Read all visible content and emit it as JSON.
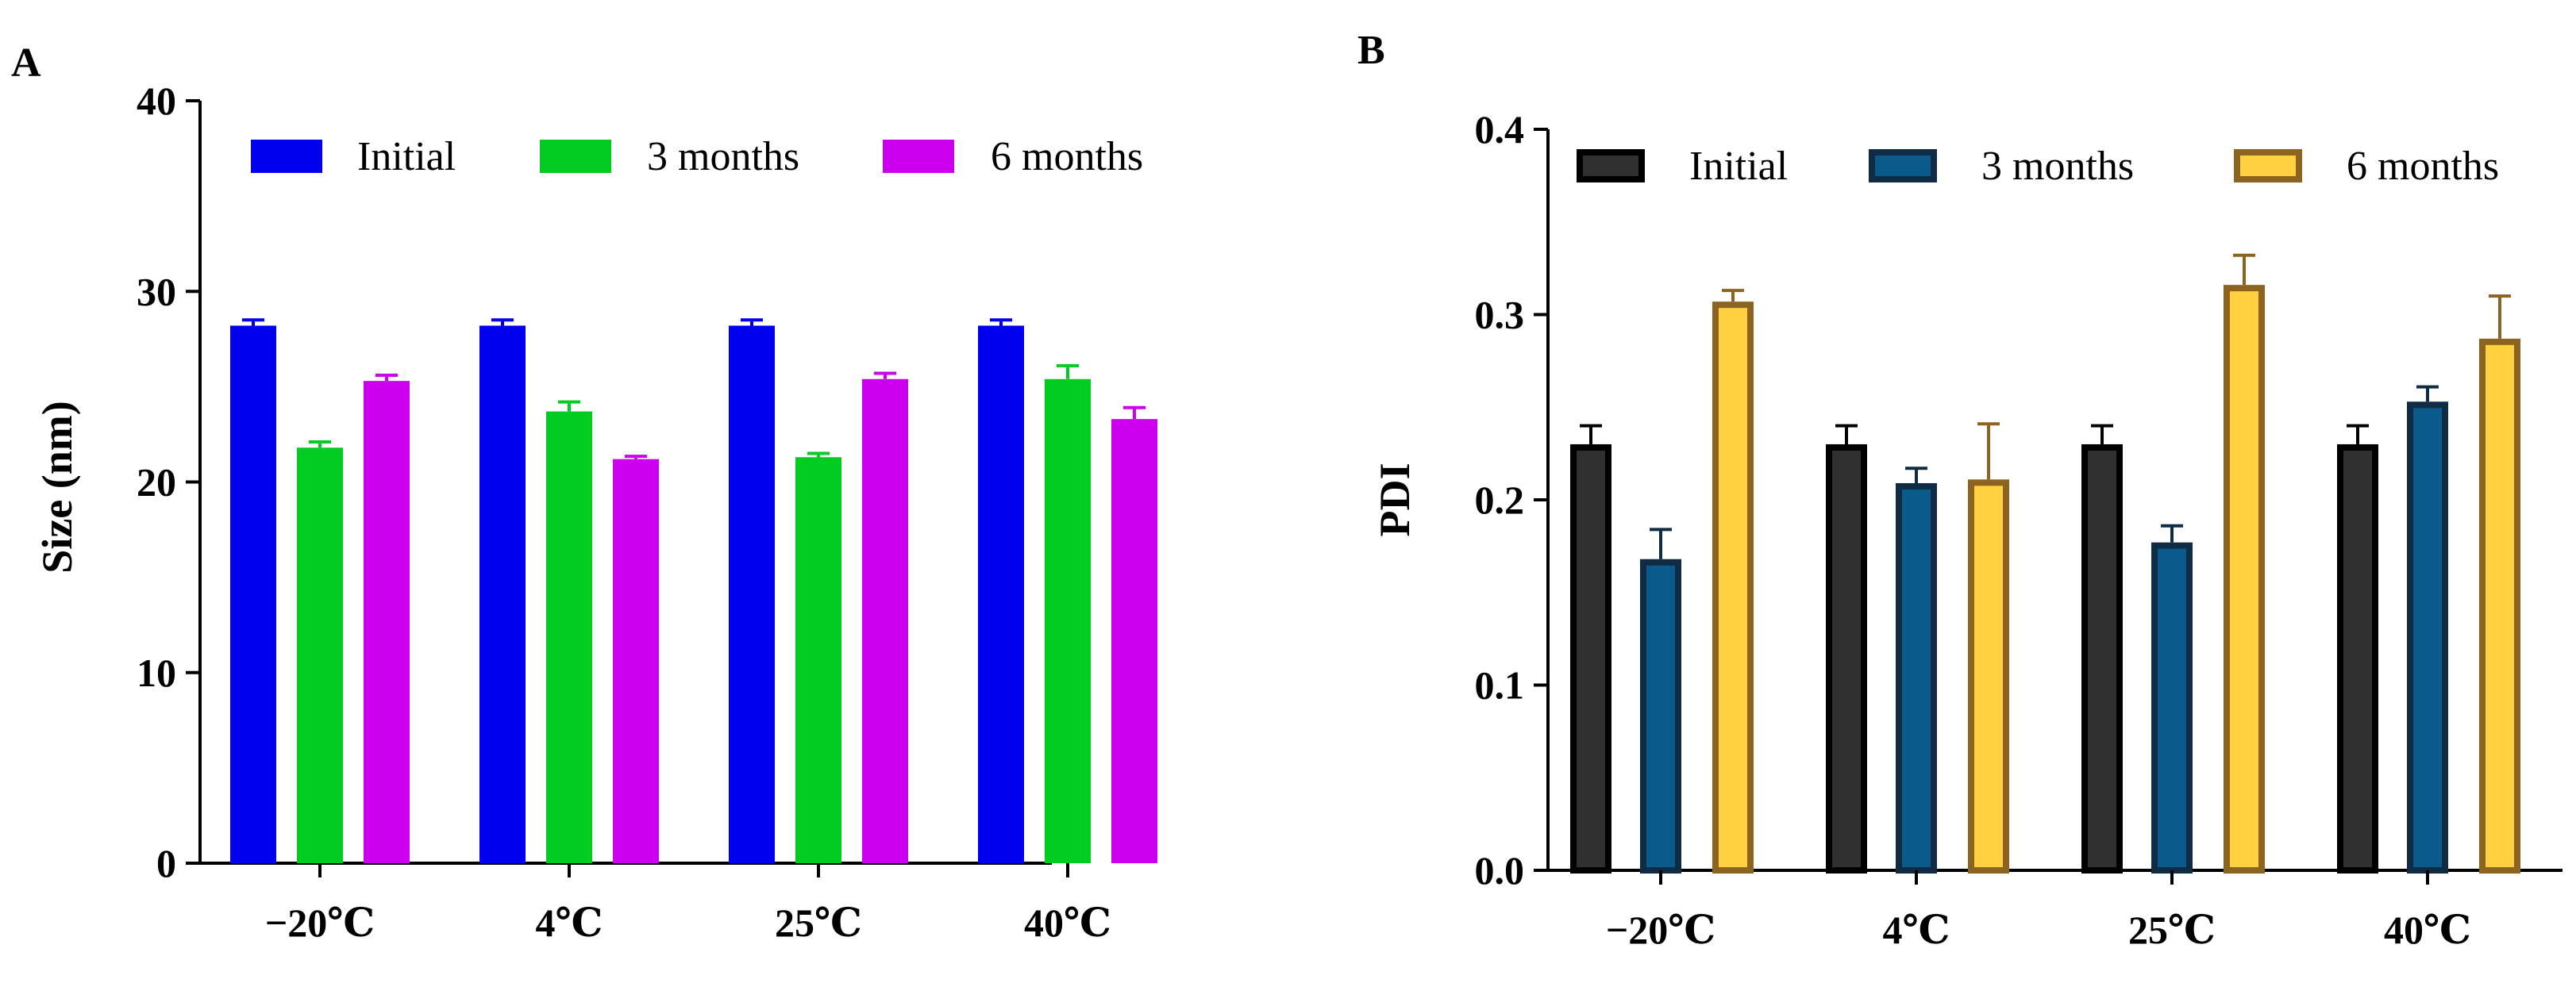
{
  "chart_data": [
    {
      "panel_label": "A",
      "type": "bar",
      "categories": [
        "−20℃",
        "4℃",
        "25℃",
        "40℃"
      ],
      "series": [
        {
          "name": "Initial",
          "values": [
            28.2,
            28.2,
            28.2,
            28.2
          ],
          "errors": [
            0.3,
            0.3,
            0.3,
            0.3
          ],
          "color": "#0000ee",
          "edge": "#0000ee"
        },
        {
          "name": "3 months",
          "values": [
            21.8,
            23.7,
            21.3,
            25.4
          ],
          "errors": [
            0.3,
            0.5,
            0.2,
            0.7
          ],
          "color": "#00cc22",
          "edge": "#00cc22"
        },
        {
          "name": "6 months",
          "values": [
            25.3,
            21.2,
            25.4,
            23.3
          ],
          "errors": [
            0.3,
            0.15,
            0.3,
            0.6
          ],
          "color": "#cc00ee",
          "edge": "#cc00ee"
        }
      ],
      "title": "",
      "xlabel": "",
      "ylabel": "Size (nm)",
      "ylim": [
        0,
        40
      ],
      "yticks": [
        "0",
        "10",
        "20",
        "30",
        "40"
      ],
      "legend": "top, horizontal",
      "grid": false
    },
    {
      "panel_label": "B",
      "type": "bar",
      "categories": [
        "−20℃",
        "4℃",
        "25℃",
        "40℃"
      ],
      "series": [
        {
          "name": "Initial",
          "values": [
            0.23,
            0.23,
            0.23,
            0.23
          ],
          "errors": [
            0.01,
            0.01,
            0.01,
            0.01
          ],
          "color": "#303030",
          "edge": "#000000"
        },
        {
          "name": "3 months",
          "values": [
            0.168,
            0.209,
            0.177,
            0.253
          ],
          "errors": [
            0.016,
            0.008,
            0.009,
            0.008
          ],
          "color": "#0a5a8c",
          "edge": "#0f2c44"
        },
        {
          "name": "6 months",
          "values": [
            0.307,
            0.211,
            0.316,
            0.287
          ],
          "errors": [
            0.006,
            0.03,
            0.016,
            0.023
          ],
          "color": "#ffd040",
          "edge": "#8c6420"
        }
      ],
      "title": "",
      "xlabel": "",
      "ylabel": "PDI",
      "ylim": [
        0,
        0.4
      ],
      "yticks": [
        "0.0",
        "0.1",
        "0.2",
        "0.3",
        "0.4"
      ],
      "legend": "top, horizontal",
      "grid": false
    }
  ]
}
